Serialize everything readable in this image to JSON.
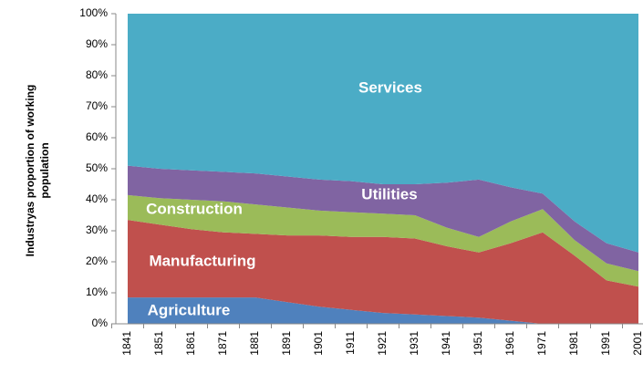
{
  "chart_data": {
    "type": "stacked_area",
    "y_label": [
      "Industryas proportion of working",
      "population"
    ],
    "categories": [
      "1841",
      "1851",
      "1861",
      "1871",
      "1881",
      "1891",
      "1901",
      "1911",
      "1921",
      "1931",
      "1941",
      "1951",
      "1961",
      "1971",
      "1981",
      "1991",
      "2001"
    ],
    "series": [
      {
        "name": "Agriculture",
        "color": "#4f81bd",
        "values": [
          8.5,
          8.5,
          8.5,
          8.5,
          8.5,
          7,
          5.5,
          4.5,
          3.5,
          3,
          2.5,
          2,
          1,
          0,
          0,
          0,
          0
        ]
      },
      {
        "name": "Manufacturing",
        "color": "#c0504d",
        "values": [
          25,
          23.5,
          22,
          21,
          20.5,
          21.5,
          23,
          23.5,
          24.5,
          24.5,
          22.5,
          21,
          25,
          29.5,
          22,
          14,
          12
        ]
      },
      {
        "name": "Construction",
        "color": "#9bbb59",
        "values": [
          8,
          8.5,
          9.5,
          10,
          9.5,
          9,
          8,
          8,
          7.5,
          7.5,
          6,
          5,
          7,
          7.5,
          5,
          5.5,
          5
        ]
      },
      {
        "name": "Utilities",
        "color": "#8064a2",
        "values": [
          9.5,
          9.5,
          9.5,
          9.5,
          10,
          10,
          10,
          10,
          9.5,
          10,
          14.5,
          18.5,
          11,
          5,
          6,
          6.5,
          6
        ]
      },
      {
        "name": "Services",
        "color": "#4bacc6",
        "values": [
          49,
          50,
          50.5,
          51,
          51.5,
          52.5,
          53.5,
          54,
          55,
          55,
          54.5,
          53.5,
          56,
          58,
          67,
          74,
          77
        ]
      }
    ],
    "ylim": [
      0,
      100
    ],
    "yticks": [
      {
        "value": 0,
        "label": "0%"
      },
      {
        "value": 10,
        "label": "10%"
      },
      {
        "value": 20,
        "label": "20%"
      },
      {
        "value": 30,
        "label": "30%"
      },
      {
        "value": 40,
        "label": "40%"
      },
      {
        "value": 50,
        "label": "50%"
      },
      {
        "value": 60,
        "label": "60%"
      },
      {
        "value": 70,
        "label": "70%"
      },
      {
        "value": 80,
        "label": "80%"
      },
      {
        "value": 90,
        "label": "90%"
      },
      {
        "value": 100,
        "label": "100%"
      }
    ]
  }
}
